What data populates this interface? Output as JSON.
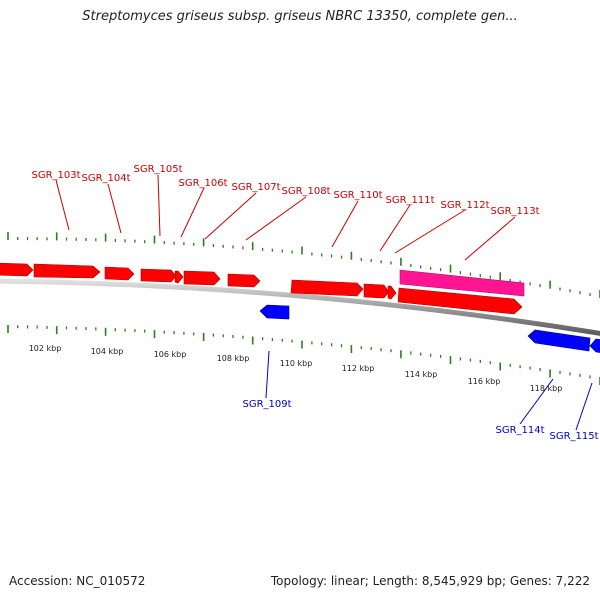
{
  "title": "Streptomyces griseus subsp. griseus NBRC 13350, complete gen...",
  "footer": {
    "accession": "Accession: NC_010572",
    "summary": "Topology: linear; Length: 8,545,929 bp; Genes: 7,222"
  },
  "colors": {
    "forward_gene": "#ff0000",
    "reverse_gene": "#0000ff",
    "highlight_gene": "#ff1493",
    "trna_label_forward": "#cc0000",
    "trna_label_reverse": "#0000cc",
    "ticks": "#2e7d1f",
    "backbone": "#888888"
  },
  "scale_labels": [
    "102 kbp",
    "104 kbp",
    "106 kbp",
    "108 kbp",
    "110 kbp",
    "112 kbp",
    "114 kbp",
    "116 kbp",
    "118 kbp"
  ],
  "trna_labels_top": [
    "SGR_103t",
    "SGR_104t",
    "SGR_105t",
    "SGR_106t",
    "SGR_107t",
    "SGR_108t",
    "SGR_110t",
    "SGR_111t",
    "SGR_112t",
    "SGR_113t"
  ],
  "trna_labels_bottom": [
    "SGR_109t",
    "SGR_114t",
    "SGR_115t"
  ]
}
